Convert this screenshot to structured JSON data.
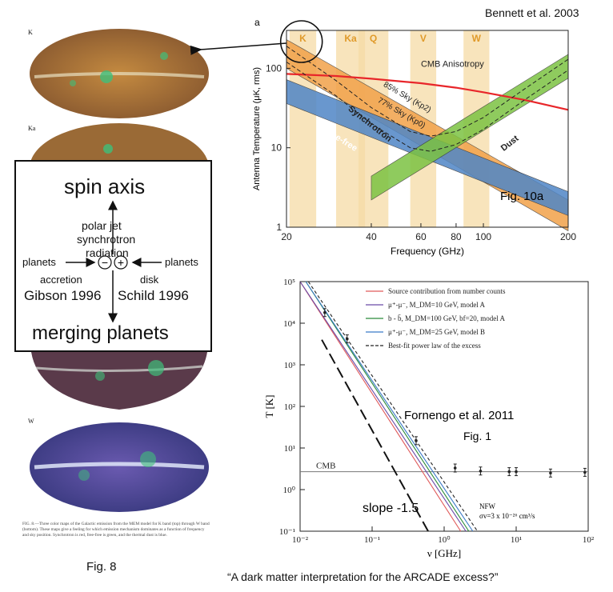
{
  "header": {
    "citation": "Bennett et al. 2003"
  },
  "left": {
    "map_labels": [
      "K",
      "Ka",
      "W"
    ],
    "caption_text": "FIG. 8.—Three color maps of the Galactic emission from the MEM model for K band (top) through W band (bottom). These maps give a feeling for which emission mechanism dominates as a function of frequency and sky position. Synchrotron is red, free-free is green, and the thermal dust is blue.",
    "fig_label": "Fig. 8",
    "colors": {
      "map_k": "#b07a3a",
      "map_w": "#5a4a9a",
      "galactic_plane": "#e8e0c0",
      "green_blob": "#3fbf7a"
    }
  },
  "diagram": {
    "title": "spin axis",
    "line1": "polar jet",
    "line2": "synchrotron",
    "line3": "radiation",
    "left_label": "planets",
    "right_label": "planets",
    "minus": "−",
    "plus": "+",
    "accretion": "accretion",
    "disk": "disk",
    "gibson": "Gibson 1996",
    "schild": "Schild 1996",
    "bottom": "merging planets"
  },
  "chart_data": [
    {
      "type": "area",
      "panel_letter": "a",
      "fig_label": "Fig. 10a",
      "xlabel": "Frequency (GHz)",
      "ylabel": "Antenna Temperature (μK, rms)",
      "xscale": "log",
      "yscale": "log",
      "xlim": [
        20,
        200
      ],
      "ylim": [
        1,
        300
      ],
      "xticks": [
        20,
        40,
        60,
        80,
        100,
        200
      ],
      "yticks": [
        1,
        10,
        100
      ],
      "bands": [
        {
          "name": "K",
          "lo": 20.5,
          "hi": 25.5
        },
        {
          "name": "Ka",
          "lo": 30,
          "hi": 38
        },
        {
          "name": "Q",
          "lo": 36,
          "hi": 46
        },
        {
          "name": "V",
          "lo": 55,
          "hi": 68
        },
        {
          "name": "W",
          "lo": 85,
          "hi": 105
        }
      ],
      "series": [
        {
          "name": "CMB Anisotropy",
          "color": "#e8262a",
          "x": [
            20,
            30,
            40,
            60,
            80,
            100,
            140,
            200
          ],
          "y": [
            85,
            80,
            74,
            65,
            57,
            50,
            40,
            30
          ]
        },
        {
          "name": "85% Sky (Kp2)",
          "color": "#222222",
          "dash": true,
          "x": [
            20,
            30,
            40,
            55,
            65,
            80,
            100,
            140,
            200
          ],
          "y": [
            190,
            70,
            32,
            16,
            14,
            16,
            24,
            55,
            130
          ]
        },
        {
          "name": "77% Sky (Kp0)",
          "color": "#222222",
          "dash": true,
          "x": [
            20,
            30,
            40,
            55,
            65,
            80,
            100,
            140,
            200
          ],
          "y": [
            120,
            45,
            20,
            10,
            9,
            11,
            17,
            40,
            95
          ]
        },
        {
          "name": "Synchrotron",
          "color": "#f2a24a",
          "x": [
            20,
            200
          ],
          "y_low": [
            100,
            0.9
          ],
          "y_high": [
            230,
            2.2
          ]
        },
        {
          "name": "Free-free",
          "color": "#4f86c6",
          "x": [
            20,
            200
          ],
          "y_low": [
            36,
            1.4
          ],
          "y_high": [
            72,
            2.8
          ]
        },
        {
          "name": "Dust",
          "color": "#7cc242",
          "x": [
            40,
            200
          ],
          "y_low": [
            2.2,
            75
          ],
          "y_high": [
            4.4,
            150
          ]
        }
      ],
      "band_color": "#f6dba5"
    },
    {
      "type": "line",
      "title": "Fornengo et al. 2011",
      "fig_label": "Fig. 1",
      "xlabel": "ν [GHz]",
      "ylabel": "T [K]",
      "xscale": "log",
      "yscale": "log",
      "xlim": [
        0.01,
        100
      ],
      "ylim": [
        0.1,
        100000
      ],
      "xtick_labels": [
        "10⁻²",
        "10⁻¹",
        "10⁰",
        "10¹",
        "10²"
      ],
      "ytick_labels": [
        "10⁻¹",
        "10⁰",
        "10¹",
        "10²",
        "10³",
        "10⁴",
        "10⁵"
      ],
      "legend": [
        {
          "label": "Source contribution from number counts",
          "color": "#e05a5a",
          "dash": false
        },
        {
          "label": "μ⁺-μ⁻, M_DM=10 GeV, model A",
          "color": "#6a4aa8",
          "dash": false
        },
        {
          "label": "b - b̄, M_DM=100 GeV, bf=20, model A",
          "color": "#2a8a3a",
          "dash": false
        },
        {
          "label": "μ⁺-μ⁻, M_DM=25 GeV, model B",
          "color": "#3a7ac8",
          "dash": false
        },
        {
          "label": "Best-fit power law of the excess",
          "color": "#222222",
          "dash": true
        }
      ],
      "series": [
        {
          "name": "Source contribution from number counts",
          "color": "#e05a5a",
          "x": [
            0.01,
            1.7
          ],
          "y": [
            100000,
            0.1
          ]
        },
        {
          "name": "μ⁺-μ⁻, model A",
          "color": "#6a4aa8",
          "x": [
            0.01,
            2.0
          ],
          "y": [
            100000,
            0.1
          ]
        },
        {
          "name": "b - b̄, model A",
          "color": "#2a8a3a",
          "x": [
            0.012,
            2.2
          ],
          "y": [
            100000,
            0.1
          ]
        },
        {
          "name": "μ⁺-μ⁻, model B",
          "color": "#3a7ac8",
          "x": [
            0.012,
            2.5
          ],
          "y": [
            100000,
            0.1
          ]
        },
        {
          "name": "Best-fit power law",
          "color": "#222222",
          "dash": true,
          "x": [
            0.013,
            2.9
          ],
          "y": [
            100000,
            0.1
          ]
        },
        {
          "name": "slope -1.5",
          "color": "#111111",
          "longdash": true,
          "x": [
            0.02,
            0.6
          ],
          "y": [
            4000,
            0.1
          ]
        }
      ],
      "cmb": {
        "label": "CMB",
        "value": 2.7
      },
      "points": [
        {
          "x": 0.022,
          "y": 18000
        },
        {
          "x": 0.045,
          "y": 4200
        },
        {
          "x": 0.408,
          "y": 15
        },
        {
          "x": 1.42,
          "y": 3.3
        },
        {
          "x": 3.2,
          "y": 2.8
        },
        {
          "x": 8,
          "y": 2.7
        },
        {
          "x": 10,
          "y": 2.7
        },
        {
          "x": 30,
          "y": 2.5
        },
        {
          "x": 90,
          "y": 2.6
        }
      ],
      "annotations": {
        "slope": "slope -1.5",
        "nfw": "NFW",
        "sigma": "σv=3 x 10⁻²⁶ cm³/s"
      }
    }
  ],
  "footer": {
    "quote": "“A dark matter interpretation for the ARCADE excess?”"
  }
}
